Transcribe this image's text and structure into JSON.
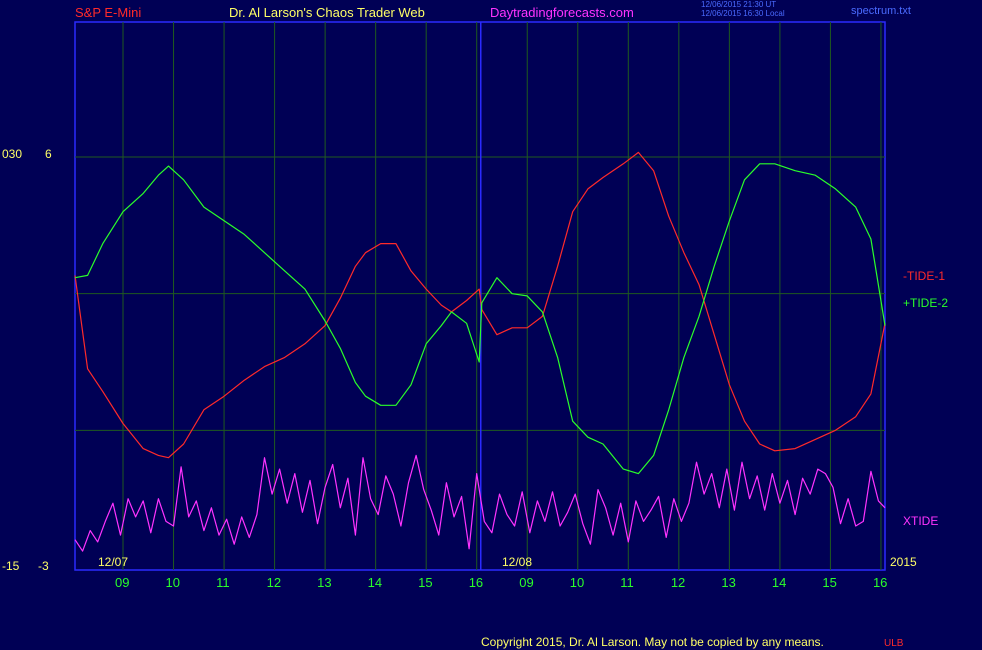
{
  "header": {
    "symbol": "S&P E-Mini",
    "site_title": "Dr. Al Larson's Chaos Trader Web",
    "website": "Daytradingforecasts.com",
    "timestamp_ut": "12/06/2015 21:30 UT",
    "timestamp_local": "12/06/2015 16:30 Local",
    "file": "spectrum.txt"
  },
  "footer": {
    "copyright": "Copyright 2015, Dr. Al Larson. May not be copied by any means.",
    "badge": "ULB"
  },
  "chart_data": {
    "type": "line",
    "year_label": "2015",
    "date_labels": [
      {
        "label": "12/07",
        "hour": 8.5
      },
      {
        "label": "12/08",
        "hour": 16.5
      }
    ],
    "left_axis": {
      "top_label": "6",
      "bottom_label": "-3",
      "outer_top": "030",
      "outer_bottom": "-15"
    },
    "x_ticks": [
      {
        "label": "09",
        "hour": 9
      },
      {
        "label": "10",
        "hour": 10
      },
      {
        "label": "11",
        "hour": 11
      },
      {
        "label": "12",
        "hour": 12
      },
      {
        "label": "13",
        "hour": 13
      },
      {
        "label": "14",
        "hour": 14
      },
      {
        "label": "15",
        "hour": 15
      },
      {
        "label": "16",
        "hour": 16
      },
      {
        "label": "09",
        "hour": 17
      },
      {
        "label": "10",
        "hour": 18
      },
      {
        "label": "11",
        "hour": 19
      },
      {
        "label": "12",
        "hour": 20
      },
      {
        "label": "13",
        "hour": 21
      },
      {
        "label": "14",
        "hour": 22
      },
      {
        "label": "15",
        "hour": 23
      },
      {
        "label": "16",
        "hour": 24
      }
    ],
    "x_range": [
      8.05,
      24.08
    ],
    "y_range": [
      -3,
      6
    ],
    "day_divider_hour": 16.08,
    "gridlines_y": [
      6,
      3,
      0
    ],
    "series": [
      {
        "name": "-TIDE-1",
        "color": "#ff2a2a",
        "x": [
          8.05,
          8.3,
          8.6,
          9.0,
          9.4,
          9.7,
          9.9,
          10.2,
          10.6,
          11.0,
          11.4,
          11.8,
          12.2,
          12.6,
          13.0,
          13.3,
          13.6,
          13.8,
          14.1,
          14.4,
          14.7,
          15.0,
          15.3,
          15.5,
          15.8,
          16.05,
          16.1,
          16.4,
          16.7,
          17.0,
          17.3,
          17.6,
          17.9,
          18.2,
          18.5,
          18.9,
          19.2,
          19.5,
          19.8,
          20.1,
          20.4,
          20.7,
          21.0,
          21.3,
          21.6,
          21.9,
          22.3,
          22.7,
          23.1,
          23.5,
          23.8,
          24.08
        ],
        "y": [
          3.4,
          1.35,
          0.85,
          0.15,
          -0.4,
          -0.55,
          -0.6,
          -0.3,
          0.45,
          0.75,
          1.1,
          1.4,
          1.6,
          1.9,
          2.3,
          2.9,
          3.6,
          3.9,
          4.1,
          4.1,
          3.5,
          3.1,
          2.75,
          2.6,
          2.85,
          3.1,
          2.65,
          2.1,
          2.25,
          2.25,
          2.5,
          3.6,
          4.8,
          5.3,
          5.55,
          5.85,
          6.1,
          5.7,
          4.7,
          3.9,
          3.2,
          2.1,
          1.0,
          0.2,
          -0.3,
          -0.45,
          -0.4,
          -0.2,
          0.0,
          0.3,
          0.8,
          2.35
        ]
      },
      {
        "name": "+TIDE-2",
        "color": "#2aff2a",
        "x": [
          8.05,
          8.3,
          8.6,
          9.0,
          9.4,
          9.7,
          9.9,
          10.2,
          10.6,
          11.0,
          11.4,
          11.8,
          12.2,
          12.6,
          13.0,
          13.3,
          13.6,
          13.8,
          14.1,
          14.4,
          14.7,
          15.0,
          15.3,
          15.5,
          15.8,
          16.05,
          16.1,
          16.4,
          16.7,
          17.0,
          17.3,
          17.6,
          17.9,
          18.2,
          18.5,
          18.9,
          19.2,
          19.5,
          19.8,
          20.1,
          20.4,
          20.7,
          21.0,
          21.3,
          21.6,
          21.9,
          22.3,
          22.7,
          23.1,
          23.5,
          23.8,
          24.08
        ],
        "y": [
          3.35,
          3.4,
          4.1,
          4.8,
          5.2,
          5.6,
          5.8,
          5.5,
          4.9,
          4.6,
          4.3,
          3.9,
          3.5,
          3.1,
          2.4,
          1.8,
          1.05,
          0.75,
          0.55,
          0.55,
          1.0,
          1.9,
          2.3,
          2.6,
          2.35,
          1.5,
          2.8,
          3.35,
          3.0,
          2.95,
          2.6,
          1.6,
          0.2,
          -0.15,
          -0.3,
          -0.85,
          -0.95,
          -0.55,
          0.45,
          1.6,
          2.5,
          3.6,
          4.6,
          5.5,
          5.85,
          5.85,
          5.7,
          5.6,
          5.3,
          4.9,
          4.2,
          2.3
        ]
      },
      {
        "name": "XTIDE",
        "color": "#ff33ff",
        "x": [
          8.05,
          8.2,
          8.35,
          8.5,
          8.65,
          8.8,
          8.95,
          9.1,
          9.25,
          9.4,
          9.55,
          9.7,
          9.85,
          10.0,
          10.15,
          10.3,
          10.45,
          10.6,
          10.75,
          10.9,
          11.05,
          11.2,
          11.35,
          11.5,
          11.65,
          11.8,
          11.95,
          12.1,
          12.25,
          12.4,
          12.55,
          12.7,
          12.85,
          13.0,
          13.15,
          13.3,
          13.45,
          13.6,
          13.75,
          13.9,
          14.05,
          14.2,
          14.35,
          14.5,
          14.65,
          14.8,
          14.95,
          15.1,
          15.25,
          15.4,
          15.55,
          15.7,
          15.85,
          16.0,
          16.15,
          16.3,
          16.45,
          16.6,
          16.75,
          16.9,
          17.05,
          17.2,
          17.35,
          17.5,
          17.65,
          17.8,
          17.95,
          18.1,
          18.25,
          18.4,
          18.55,
          18.7,
          18.85,
          19.0,
          19.15,
          19.3,
          19.45,
          19.6,
          19.75,
          19.9,
          20.05,
          20.2,
          20.35,
          20.5,
          20.65,
          20.8,
          20.95,
          21.1,
          21.25,
          21.4,
          21.55,
          21.7,
          21.85,
          22.0,
          22.15,
          22.3,
          22.45,
          22.6,
          22.75,
          22.9,
          23.05,
          23.2,
          23.35,
          23.5,
          23.65,
          23.8,
          23.95,
          24.08
        ],
        "y": [
          -2.4,
          -2.65,
          -2.2,
          -2.45,
          -2.0,
          -1.6,
          -2.3,
          -1.5,
          -1.9,
          -1.55,
          -2.25,
          -1.5,
          -2.0,
          -2.1,
          -0.8,
          -1.9,
          -1.55,
          -2.2,
          -1.7,
          -2.3,
          -1.95,
          -2.5,
          -1.9,
          -2.35,
          -1.85,
          -0.6,
          -1.4,
          -0.85,
          -1.6,
          -0.95,
          -1.8,
          -1.1,
          -2.05,
          -1.25,
          -0.75,
          -1.7,
          -1.05,
          -2.3,
          -0.6,
          -1.5,
          -1.85,
          -1.0,
          -1.4,
          -2.1,
          -1.15,
          -0.55,
          -1.3,
          -1.75,
          -2.3,
          -1.15,
          -1.9,
          -1.45,
          -2.6,
          -0.95,
          -2.0,
          -2.25,
          -1.4,
          -1.85,
          -2.1,
          -1.35,
          -2.25,
          -1.55,
          -2.0,
          -1.35,
          -2.1,
          -1.8,
          -1.4,
          -2.05,
          -2.5,
          -1.3,
          -1.7,
          -2.3,
          -1.6,
          -2.45,
          -1.55,
          -2.0,
          -1.75,
          -1.45,
          -2.35,
          -1.5,
          -2.0,
          -1.6,
          -0.7,
          -1.4,
          -0.95,
          -1.7,
          -0.85,
          -1.75,
          -0.7,
          -1.5,
          -1.0,
          -1.75,
          -0.95,
          -1.6,
          -1.1,
          -1.85,
          -1.05,
          -1.4,
          -0.85,
          -0.95,
          -1.25,
          -2.05,
          -1.5,
          -2.1,
          -2.0,
          -0.9,
          -1.55,
          -1.7
        ]
      }
    ]
  }
}
